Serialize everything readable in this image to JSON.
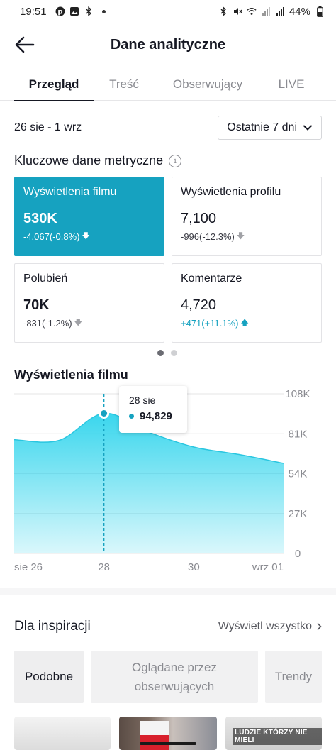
{
  "status_bar": {
    "time": "19:51",
    "battery": "44%",
    "left_icons": [
      "pinterest-icon",
      "gallery-icon",
      "bluetooth-icon",
      "dot-icon"
    ],
    "right_icons": [
      "bluetooth-icon",
      "mute-icon",
      "wifi-icon",
      "signal-icon",
      "signal-icon",
      "battery-icon"
    ]
  },
  "header": {
    "title": "Dane analityczne",
    "back_icon": "arrow-left-icon"
  },
  "tabs": [
    {
      "label": "Przegląd",
      "active": true
    },
    {
      "label": "Treść",
      "active": false
    },
    {
      "label": "Obserwujący",
      "active": false
    },
    {
      "label": "LIVE",
      "active": false
    }
  ],
  "date_range": "26 sie - 1 wrz",
  "period_select": {
    "value": "Ostatnie 7 dni",
    "icon": "chevron-down-icon"
  },
  "key_metrics": {
    "title": "Kluczowe dane metryczne",
    "info_icon": "info-icon",
    "cards": [
      {
        "label": "Wyświetlenia filmu",
        "value": "530K",
        "change": "-4,067(-0.8%)",
        "direction": "down",
        "active": true
      },
      {
        "label": "Wyświetlenia profilu",
        "value": "7,100",
        "change": "-996(-12.3%)",
        "direction": "down",
        "active": false
      },
      {
        "label": "Polubień",
        "value": "70K",
        "change": "-831(-1.2%)",
        "direction": "down",
        "active": false
      },
      {
        "label": "Komentarze",
        "value": "4,720",
        "change": "+471(+11.1%)",
        "direction": "up",
        "active": false
      }
    ],
    "pager": {
      "pages": 2,
      "current": 1
    }
  },
  "chart_section": {
    "title": "Wyświetlenia filmu",
    "tooltip": {
      "date": "28 sie",
      "value": "94,829"
    }
  },
  "chart_data": {
    "type": "area",
    "title": "Wyświetlenia filmu",
    "x_ticks": [
      "sie 26",
      "28",
      "30",
      "wrz 01"
    ],
    "y_ticks": [
      "108K",
      "81K",
      "54K",
      "27K",
      "0"
    ],
    "ylim": [
      0,
      108000
    ],
    "x": [
      26,
      27,
      28,
      29,
      30,
      31,
      32
    ],
    "values": [
      77000,
      76500,
      94829,
      82000,
      72000,
      67000,
      61000
    ],
    "grid": true,
    "color": "#2fd4ec",
    "highlight": {
      "x": 28,
      "value": 94829
    }
  },
  "inspiration": {
    "title": "Dla inspiracji",
    "view_all": "Wyświetl wszystko",
    "chips": [
      {
        "label": "Podobne",
        "active": true
      },
      {
        "label": "Oglądane przez obserwujących",
        "active": false
      },
      {
        "label": "Trendy",
        "active": false
      }
    ],
    "thumbnails": [
      {
        "label": ""
      },
      {
        "label": ""
      },
      {
        "label": "LUDZIE KTÓRZY NIE MIELI"
      }
    ]
  },
  "colors": {
    "accent": "#16a2c0",
    "area": "#2fd4ec",
    "text": "#161823",
    "muted": "#8a8b91"
  }
}
